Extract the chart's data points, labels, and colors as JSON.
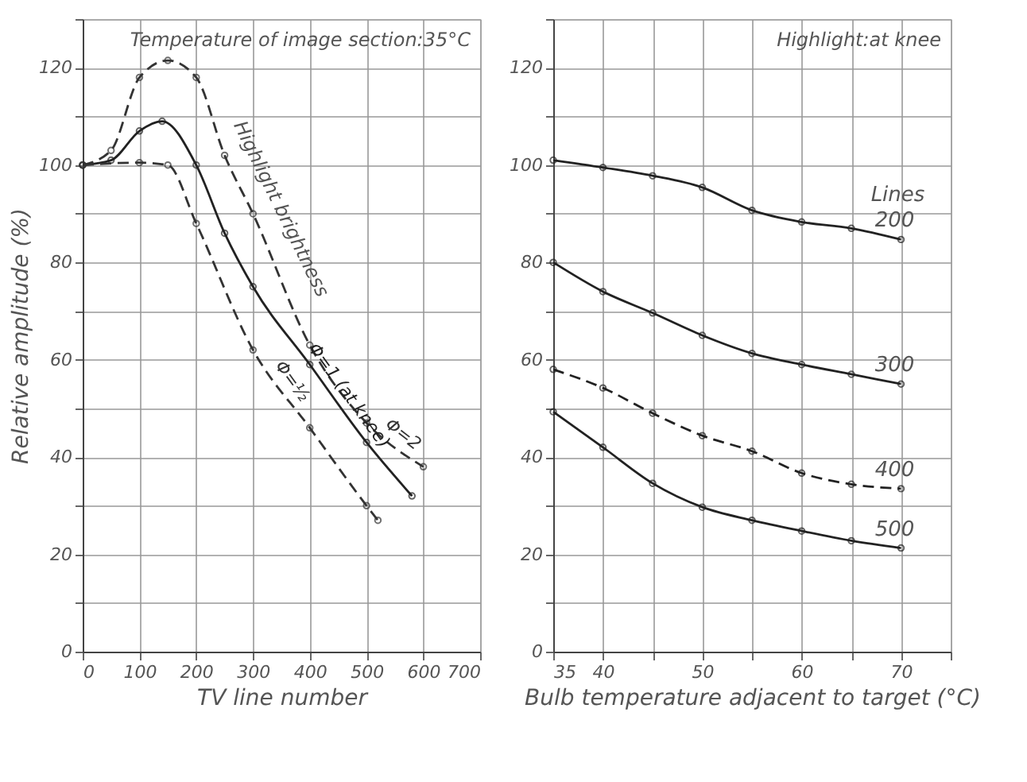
{
  "chart_data": [
    {
      "type": "line",
      "xlabel": "TV line number",
      "ylabel": "Relative amplitude (%)",
      "xlim": [
        0,
        700
      ],
      "ylim": [
        0,
        130
      ],
      "xticks": [
        0,
        100,
        200,
        300,
        400,
        500,
        600,
        700
      ],
      "yticks": [
        0,
        {
          "value": 10,
          "label": null
        },
        20,
        {
          "value": 30,
          "label": null
        },
        40,
        {
          "value": 50,
          "label": null
        },
        60,
        {
          "value": 70,
          "label": null
        },
        80,
        {
          "value": 90,
          "label": null
        },
        100,
        {
          "value": 110,
          "label": null
        },
        120,
        {
          "value": 130,
          "label": null
        }
      ],
      "grid": true,
      "marker": "circle",
      "annotations": [
        "Temperature of image section:35°C",
        "Highlight brightness"
      ],
      "series": [
        {
          "name": "Φ=2",
          "color": "#333333",
          "line_style": "dashed",
          "x": [
            0,
            50,
            100,
            150,
            200,
            250,
            300,
            400,
            500,
            600
          ],
          "values": [
            100,
            103,
            118,
            121.5,
            118,
            102,
            90,
            63,
            47,
            38
          ]
        },
        {
          "name": "Φ=1 (at knee)",
          "color": "#222222",
          "line_style": "solid",
          "x": [
            0,
            50,
            100,
            140,
            200,
            250,
            300,
            400,
            500,
            580
          ],
          "values": [
            100,
            101,
            107,
            109,
            100,
            86,
            75,
            59,
            43,
            32
          ]
        },
        {
          "name": "Φ=½",
          "color": "#333333",
          "line_style": "dashed",
          "x": [
            0,
            100,
            150,
            200,
            300,
            400,
            500,
            520
          ],
          "values": [
            100,
            100.5,
            100,
            88,
            62,
            46,
            30,
            27
          ]
        }
      ]
    },
    {
      "type": "line",
      "xlabel": "Bulb temperature adjacent to target (°C)",
      "legend_title": "Lines",
      "xlim": [
        35,
        75
      ],
      "ylim": [
        0,
        130
      ],
      "xticks": [
        35,
        40,
        {
          "value": 45,
          "label": null
        },
        50,
        {
          "value": 55,
          "label": null
        },
        60,
        {
          "value": 65,
          "label": null
        },
        70,
        {
          "value": 75,
          "label": null
        }
      ],
      "yticks": [
        0,
        {
          "value": 10,
          "label": null
        },
        20,
        {
          "value": 30,
          "label": null
        },
        40,
        {
          "value": 50,
          "label": null
        },
        60,
        {
          "value": 70,
          "label": null
        },
        80,
        {
          "value": 90,
          "label": null
        },
        100,
        {
          "value": 110,
          "label": null
        },
        120,
        {
          "value": 130,
          "label": null
        }
      ],
      "grid": true,
      "marker": "circle",
      "annotations": [
        "Highlight:at knee"
      ],
      "series": [
        {
          "name": "200",
          "color": "#222222",
          "line_style": "solid",
          "x": [
            35,
            40,
            45,
            50,
            55,
            60,
            65,
            70
          ],
          "values": [
            101,
            99.5,
            97.8,
            95.4,
            90.7,
            88.3,
            87,
            84.7
          ]
        },
        {
          "name": "300",
          "color": "#222222",
          "line_style": "solid",
          "x": [
            35,
            40,
            45,
            50,
            55,
            60,
            65,
            70
          ],
          "values": [
            80,
            74,
            69.6,
            65,
            61.3,
            59,
            57,
            55
          ]
        },
        {
          "name": "400",
          "color": "#222222",
          "line_style": "dashed",
          "x": [
            35,
            40,
            45,
            50,
            55,
            60,
            65,
            70
          ],
          "values": [
            58,
            54.2,
            49,
            44.4,
            41.2,
            36.7,
            34.4,
            33.5
          ]
        },
        {
          "name": "500",
          "color": "#222222",
          "line_style": "solid",
          "x": [
            35,
            40,
            45,
            50,
            55,
            60,
            65,
            70
          ],
          "values": [
            49.3,
            42,
            34.6,
            29.7,
            27,
            24.8,
            22.8,
            21.3
          ]
        }
      ]
    }
  ]
}
